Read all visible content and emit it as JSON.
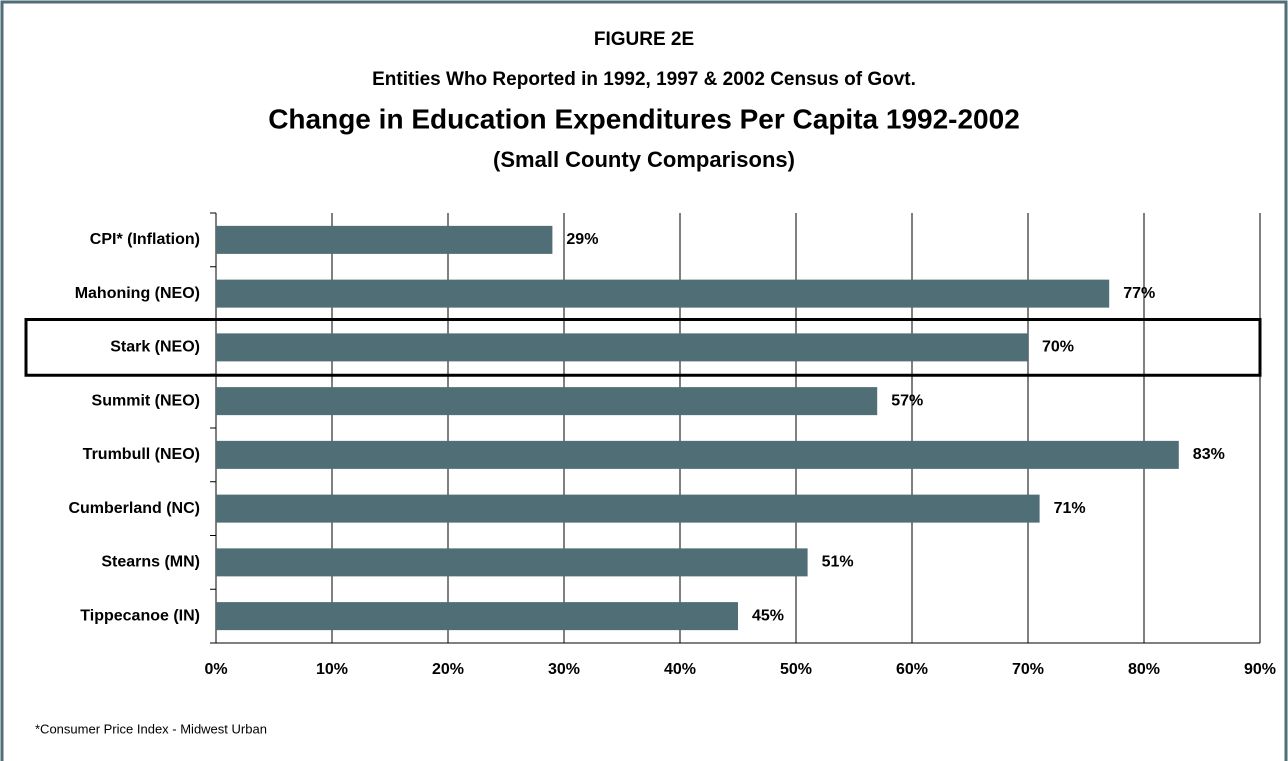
{
  "chart_data": {
    "type": "bar",
    "orientation": "horizontal",
    "label": "FIGURE 2E",
    "subtitle": "Entities Who Reported in 1992, 1997 & 2002 Census of Govt.",
    "title": "Change in Education Expenditures Per Capita 1992-2002",
    "note": "(Small County Comparisons)",
    "footnote": "*Consumer Price Index - Midwest Urban",
    "categories": [
      "CPI* (Inflation)",
      "Mahoning (NEO)",
      "Stark (NEO)",
      "Summit (NEO)",
      "Trumbull (NEO)",
      "Cumberland (NC)",
      "Stearns (MN)",
      "Tippecanoe (IN)"
    ],
    "values": [
      29,
      77,
      70,
      57,
      83,
      71,
      51,
      45
    ],
    "value_labels": [
      "29%",
      "77%",
      "70%",
      "57%",
      "83%",
      "71%",
      "51%",
      "45%"
    ],
    "color": "#4f6e75",
    "highlight": 2,
    "xlim": [
      0,
      90
    ],
    "xticks": [
      {
        "value": 0,
        "label": "0%"
      },
      {
        "value": 10,
        "label": "10%"
      },
      {
        "value": 20,
        "label": "20%"
      },
      {
        "value": 30,
        "label": "30%"
      },
      {
        "value": 40,
        "label": "40%"
      },
      {
        "value": 50,
        "label": "50%"
      },
      {
        "value": 60,
        "label": "60%"
      },
      {
        "value": 70,
        "label": "70%"
      },
      {
        "value": 80,
        "label": "80%"
      },
      {
        "value": 90,
        "label": "90%"
      }
    ],
    "grid": true
  }
}
